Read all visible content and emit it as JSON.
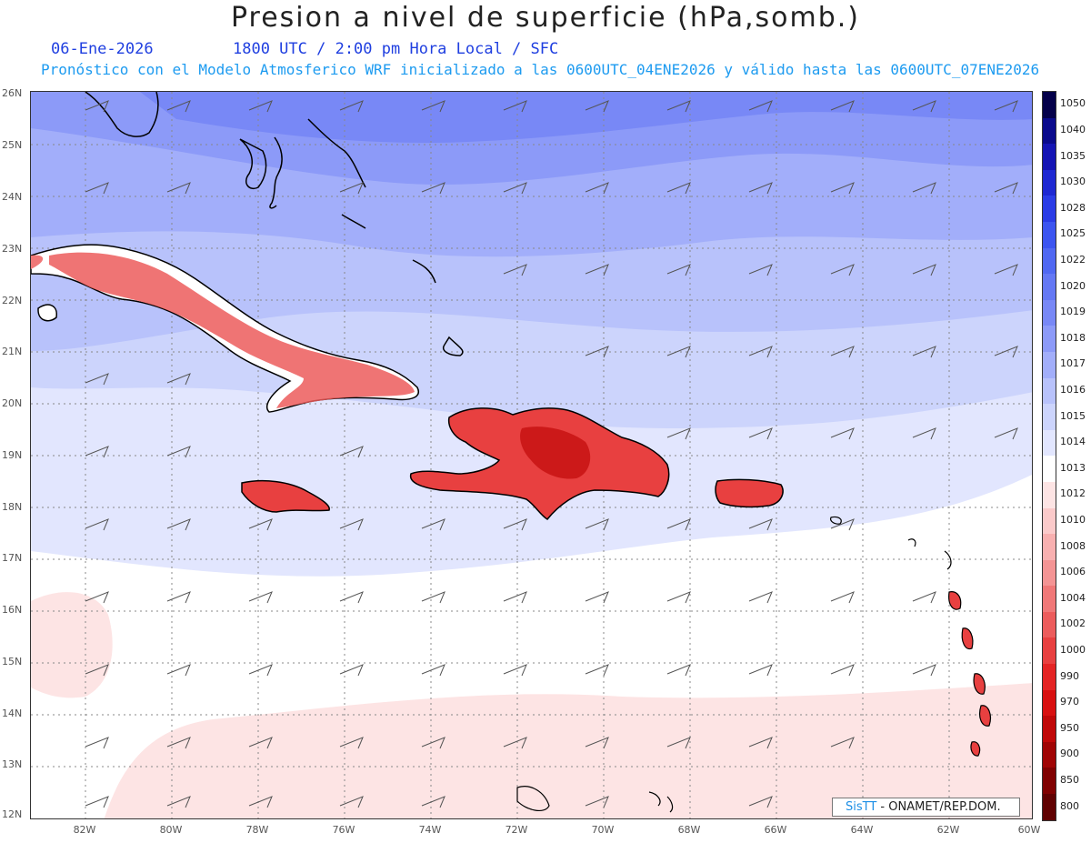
{
  "header": {
    "title": "Presion a nivel de superficie (hPa,somb.)",
    "date": "06-Ene-2026",
    "time_info": "1800 UTC / 2:00 pm Hora Local / SFC",
    "model_info": "Pronóstico con el Modelo Atmosferico WRF inicializado a las 0600UTC_04ENE2026 y válido hasta las  0600UTC_07ENE2026"
  },
  "map": {
    "lat_labels": [
      "26N",
      "25N",
      "24N",
      "23N",
      "22N",
      "21N",
      "20N",
      "19N",
      "18N",
      "17N",
      "16N",
      "15N",
      "14N",
      "13N",
      "12N"
    ],
    "lon_labels": [
      "82W",
      "80W",
      "78W",
      "76W",
      "74W",
      "72W",
      "70W",
      "68W",
      "66W",
      "64W",
      "62W",
      "60W"
    ],
    "extent": {
      "lon": [
        -83.2,
        -60.0
      ],
      "lat": [
        11.95,
        26.0
      ]
    },
    "grid": true,
    "features": [
      "cuba",
      "jamaica",
      "hispaniola",
      "puerto-rico",
      "bahamas",
      "lesser-antilles"
    ]
  },
  "colorbar": {
    "levels": [
      "1050",
      "1040",
      "1035",
      "1030",
      "1028",
      "1025",
      "1022",
      "1020",
      "1019",
      "1018",
      "1017",
      "1016",
      "1015",
      "1014",
      "1013",
      "1012",
      "1010",
      "1008",
      "1006",
      "1004",
      "1002",
      "1000",
      "990",
      "970",
      "950",
      "900",
      "850",
      "800"
    ],
    "colors": [
      "#04004a",
      "#0a0a8c",
      "#1414b4",
      "#1e28d2",
      "#2a3ce6",
      "#3c55f0",
      "#5068f2",
      "#6478f4",
      "#7888f6",
      "#8c9af8",
      "#a2aefa",
      "#b8c2fb",
      "#ccd4fc",
      "#e2e6fe",
      "#ffffff",
      "#fde4e4",
      "#fbcaca",
      "#f8b0b0",
      "#f49494",
      "#f07878",
      "#ec5c5c",
      "#e84040",
      "#e42424",
      "#d81010",
      "#c00808",
      "#a00404",
      "#800000",
      "#600000"
    ]
  },
  "credit": {
    "brand": "SisTT",
    "text": " - ONAMET/REP.DOM."
  }
}
